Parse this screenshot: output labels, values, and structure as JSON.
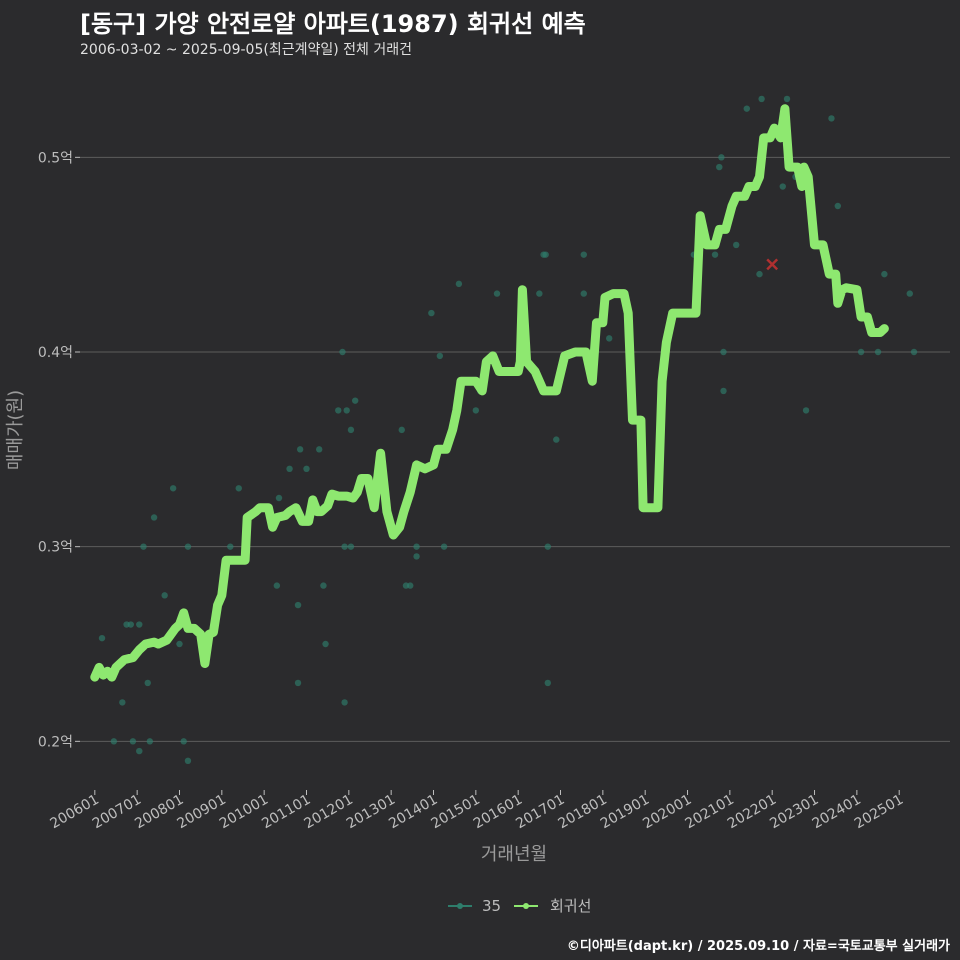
{
  "title": "[동구] 가양 안전로얄 아파트(1987) 회귀선 예측",
  "subtitle": "2006-03-02 ~ 2025-09-05(최근계약일) 전체 거래건",
  "footer": "©디아파트(dapt.kr) / 2025.09.10 / 자료=국토교통부 실거래가",
  "colors": {
    "background": "#2b2b2d",
    "grid": "#5c5c5c",
    "scatter": "#2e7d6b",
    "regression": "#8ee870",
    "marker": "#b03030"
  },
  "chart_data": {
    "type": "line",
    "title": "[동구] 가양 안전로얄 아파트(1987) 회귀선 예측",
    "xlabel": "거래년월",
    "ylabel": "매매가(원)",
    "ylim": [
      0.175,
      0.55
    ],
    "xlim": [
      2005.65,
      2026.2
    ],
    "y_ticks": [
      {
        "value": 0.2,
        "label": "0.2억"
      },
      {
        "value": 0.3,
        "label": "0.3억"
      },
      {
        "value": 0.4,
        "label": "0.4억"
      },
      {
        "value": 0.5,
        "label": "0.5억"
      }
    ],
    "x_ticks": [
      {
        "value": 2006.0,
        "label": "200601"
      },
      {
        "value": 2007.0,
        "label": "200701"
      },
      {
        "value": 2008.0,
        "label": "200801"
      },
      {
        "value": 2009.0,
        "label": "200901"
      },
      {
        "value": 2010.0,
        "label": "201001"
      },
      {
        "value": 2011.0,
        "label": "201101"
      },
      {
        "value": 2012.0,
        "label": "201201"
      },
      {
        "value": 2013.0,
        "label": "201301"
      },
      {
        "value": 2014.0,
        "label": "201401"
      },
      {
        "value": 2015.0,
        "label": "201501"
      },
      {
        "value": 2016.0,
        "label": "201601"
      },
      {
        "value": 2017.0,
        "label": "201701"
      },
      {
        "value": 2018.0,
        "label": "201801"
      },
      {
        "value": 2019.0,
        "label": "201901"
      },
      {
        "value": 2020.0,
        "label": "202001"
      },
      {
        "value": 2021.0,
        "label": "202101"
      },
      {
        "value": 2022.0,
        "label": "202201"
      },
      {
        "value": 2023.0,
        "label": "202301"
      },
      {
        "value": 2024.0,
        "label": "202401"
      },
      {
        "value": 2025.0,
        "label": "202501"
      }
    ],
    "legend": [
      "35",
      "회귀선"
    ],
    "legend_position": "bottom",
    "series": [
      {
        "name": "35",
        "kind": "scatter",
        "points": [
          [
            2006.17,
            0.253
          ],
          [
            2006.45,
            0.2
          ],
          [
            2006.65,
            0.22
          ],
          [
            2006.75,
            0.26
          ],
          [
            2006.85,
            0.26
          ],
          [
            2006.9,
            0.2
          ],
          [
            2007.05,
            0.26
          ],
          [
            2007.05,
            0.195
          ],
          [
            2007.15,
            0.3
          ],
          [
            2007.25,
            0.23
          ],
          [
            2007.3,
            0.2
          ],
          [
            2007.4,
            0.315
          ],
          [
            2007.65,
            0.275
          ],
          [
            2007.85,
            0.33
          ],
          [
            2008.0,
            0.25
          ],
          [
            2008.1,
            0.2
          ],
          [
            2008.2,
            0.19
          ],
          [
            2008.2,
            0.3
          ],
          [
            2009.2,
            0.3
          ],
          [
            2009.4,
            0.33
          ],
          [
            2010.3,
            0.28
          ],
          [
            2010.35,
            0.325
          ],
          [
            2010.6,
            0.34
          ],
          [
            2010.8,
            0.27
          ],
          [
            2010.8,
            0.23
          ],
          [
            2010.85,
            0.35
          ],
          [
            2011.0,
            0.34
          ],
          [
            2011.3,
            0.35
          ],
          [
            2011.4,
            0.28
          ],
          [
            2011.45,
            0.25
          ],
          [
            2011.75,
            0.37
          ],
          [
            2011.85,
            0.4
          ],
          [
            2011.9,
            0.22
          ],
          [
            2011.9,
            0.3
          ],
          [
            2011.95,
            0.37
          ],
          [
            2012.05,
            0.36
          ],
          [
            2012.05,
            0.3
          ],
          [
            2012.15,
            0.375
          ],
          [
            2013.25,
            0.36
          ],
          [
            2013.35,
            0.28
          ],
          [
            2013.45,
            0.28
          ],
          [
            2013.6,
            0.3
          ],
          [
            2013.6,
            0.295
          ],
          [
            2013.95,
            0.42
          ],
          [
            2014.15,
            0.398
          ],
          [
            2014.25,
            0.3
          ],
          [
            2014.6,
            0.435
          ],
          [
            2015.0,
            0.37
          ],
          [
            2015.1,
            0.38
          ],
          [
            2015.5,
            0.43
          ],
          [
            2016.5,
            0.43
          ],
          [
            2016.6,
            0.45
          ],
          [
            2016.65,
            0.45
          ],
          [
            2016.7,
            0.3
          ],
          [
            2016.7,
            0.23
          ],
          [
            2016.9,
            0.355
          ],
          [
            2017.55,
            0.43
          ],
          [
            2017.55,
            0.45
          ],
          [
            2018.15,
            0.407
          ],
          [
            2019.1,
            0.32
          ],
          [
            2020.15,
            0.45
          ],
          [
            2020.65,
            0.45
          ],
          [
            2020.75,
            0.495
          ],
          [
            2020.8,
            0.5
          ],
          [
            2020.85,
            0.4
          ],
          [
            2020.85,
            0.38
          ],
          [
            2021.15,
            0.455
          ],
          [
            2021.4,
            0.525
          ],
          [
            2021.7,
            0.44
          ],
          [
            2021.75,
            0.53
          ],
          [
            2022.25,
            0.485
          ],
          [
            2022.35,
            0.53
          ],
          [
            2022.55,
            0.49
          ],
          [
            2022.8,
            0.37
          ],
          [
            2023.4,
            0.52
          ],
          [
            2023.55,
            0.475
          ],
          [
            2024.1,
            0.4
          ],
          [
            2024.5,
            0.4
          ],
          [
            2024.65,
            0.44
          ],
          [
            2025.25,
            0.43
          ],
          [
            2025.35,
            0.4
          ]
        ]
      },
      {
        "name": "회귀선",
        "kind": "line",
        "points": [
          [
            2006.0,
            0.233
          ],
          [
            2006.1,
            0.238
          ],
          [
            2006.2,
            0.234
          ],
          [
            2006.3,
            0.236
          ],
          [
            2006.4,
            0.233
          ],
          [
            2006.5,
            0.238
          ],
          [
            2006.7,
            0.242
          ],
          [
            2006.9,
            0.243
          ],
          [
            2007.05,
            0.247
          ],
          [
            2007.2,
            0.25
          ],
          [
            2007.4,
            0.251
          ],
          [
            2007.5,
            0.25
          ],
          [
            2007.7,
            0.252
          ],
          [
            2007.9,
            0.258
          ],
          [
            2008.0,
            0.26
          ],
          [
            2008.1,
            0.266
          ],
          [
            2008.2,
            0.258
          ],
          [
            2008.35,
            0.258
          ],
          [
            2008.5,
            0.255
          ],
          [
            2008.6,
            0.24
          ],
          [
            2008.7,
            0.255
          ],
          [
            2008.8,
            0.256
          ],
          [
            2008.9,
            0.27
          ],
          [
            2009.0,
            0.275
          ],
          [
            2009.1,
            0.293
          ],
          [
            2009.3,
            0.293
          ],
          [
            2009.55,
            0.293
          ],
          [
            2009.6,
            0.315
          ],
          [
            2009.8,
            0.318
          ],
          [
            2009.9,
            0.32
          ],
          [
            2010.1,
            0.32
          ],
          [
            2010.2,
            0.31
          ],
          [
            2010.3,
            0.315
          ],
          [
            2010.5,
            0.316
          ],
          [
            2010.6,
            0.318
          ],
          [
            2010.75,
            0.32
          ],
          [
            2010.9,
            0.313
          ],
          [
            2011.05,
            0.313
          ],
          [
            2011.15,
            0.324
          ],
          [
            2011.25,
            0.318
          ],
          [
            2011.35,
            0.318
          ],
          [
            2011.5,
            0.321
          ],
          [
            2011.6,
            0.327
          ],
          [
            2011.75,
            0.326
          ],
          [
            2011.95,
            0.326
          ],
          [
            2012.1,
            0.325
          ],
          [
            2012.2,
            0.328
          ],
          [
            2012.3,
            0.335
          ],
          [
            2012.45,
            0.335
          ],
          [
            2012.6,
            0.32
          ],
          [
            2012.75,
            0.348
          ],
          [
            2012.9,
            0.318
          ],
          [
            2013.05,
            0.306
          ],
          [
            2013.2,
            0.31
          ],
          [
            2013.3,
            0.318
          ],
          [
            2013.45,
            0.328
          ],
          [
            2013.6,
            0.342
          ],
          [
            2013.8,
            0.34
          ],
          [
            2014.0,
            0.342
          ],
          [
            2014.1,
            0.35
          ],
          [
            2014.3,
            0.35
          ],
          [
            2014.45,
            0.36
          ],
          [
            2014.55,
            0.37
          ],
          [
            2014.65,
            0.385
          ],
          [
            2014.85,
            0.385
          ],
          [
            2015.0,
            0.385
          ],
          [
            2015.15,
            0.38
          ],
          [
            2015.25,
            0.395
          ],
          [
            2015.4,
            0.398
          ],
          [
            2015.55,
            0.39
          ],
          [
            2015.75,
            0.39
          ],
          [
            2016.0,
            0.39
          ],
          [
            2016.05,
            0.395
          ],
          [
            2016.1,
            0.432
          ],
          [
            2016.2,
            0.395
          ],
          [
            2016.4,
            0.39
          ],
          [
            2016.6,
            0.38
          ],
          [
            2016.9,
            0.38
          ],
          [
            2017.1,
            0.398
          ],
          [
            2017.35,
            0.4
          ],
          [
            2017.6,
            0.4
          ],
          [
            2017.75,
            0.385
          ],
          [
            2017.85,
            0.415
          ],
          [
            2018.0,
            0.415
          ],
          [
            2018.05,
            0.428
          ],
          [
            2018.25,
            0.43
          ],
          [
            2018.5,
            0.43
          ],
          [
            2018.6,
            0.42
          ],
          [
            2018.7,
            0.365
          ],
          [
            2018.9,
            0.365
          ],
          [
            2018.95,
            0.32
          ],
          [
            2019.1,
            0.32
          ],
          [
            2019.3,
            0.32
          ],
          [
            2019.4,
            0.385
          ],
          [
            2019.5,
            0.405
          ],
          [
            2019.65,
            0.42
          ],
          [
            2019.8,
            0.42
          ],
          [
            2020.0,
            0.42
          ],
          [
            2020.2,
            0.42
          ],
          [
            2020.3,
            0.47
          ],
          [
            2020.45,
            0.455
          ],
          [
            2020.65,
            0.455
          ],
          [
            2020.75,
            0.463
          ],
          [
            2020.9,
            0.463
          ],
          [
            2021.05,
            0.475
          ],
          [
            2021.15,
            0.48
          ],
          [
            2021.35,
            0.48
          ],
          [
            2021.45,
            0.485
          ],
          [
            2021.6,
            0.485
          ],
          [
            2021.7,
            0.49
          ],
          [
            2021.8,
            0.51
          ],
          [
            2021.95,
            0.51
          ],
          [
            2022.05,
            0.515
          ],
          [
            2022.2,
            0.51
          ],
          [
            2022.3,
            0.525
          ],
          [
            2022.4,
            0.495
          ],
          [
            2022.6,
            0.495
          ],
          [
            2022.7,
            0.485
          ],
          [
            2022.75,
            0.495
          ],
          [
            2022.85,
            0.49
          ],
          [
            2023.0,
            0.455
          ],
          [
            2023.2,
            0.455
          ],
          [
            2023.35,
            0.44
          ],
          [
            2023.5,
            0.44
          ],
          [
            2023.55,
            0.425
          ],
          [
            2023.65,
            0.432
          ],
          [
            2023.75,
            0.433
          ],
          [
            2024.0,
            0.432
          ],
          [
            2024.1,
            0.418
          ],
          [
            2024.25,
            0.418
          ],
          [
            2024.35,
            0.41
          ],
          [
            2024.55,
            0.41
          ],
          [
            2024.65,
            0.412
          ]
        ]
      }
    ],
    "highlight_marker": {
      "x": 2022.0,
      "y": 0.445,
      "shape": "x"
    }
  }
}
